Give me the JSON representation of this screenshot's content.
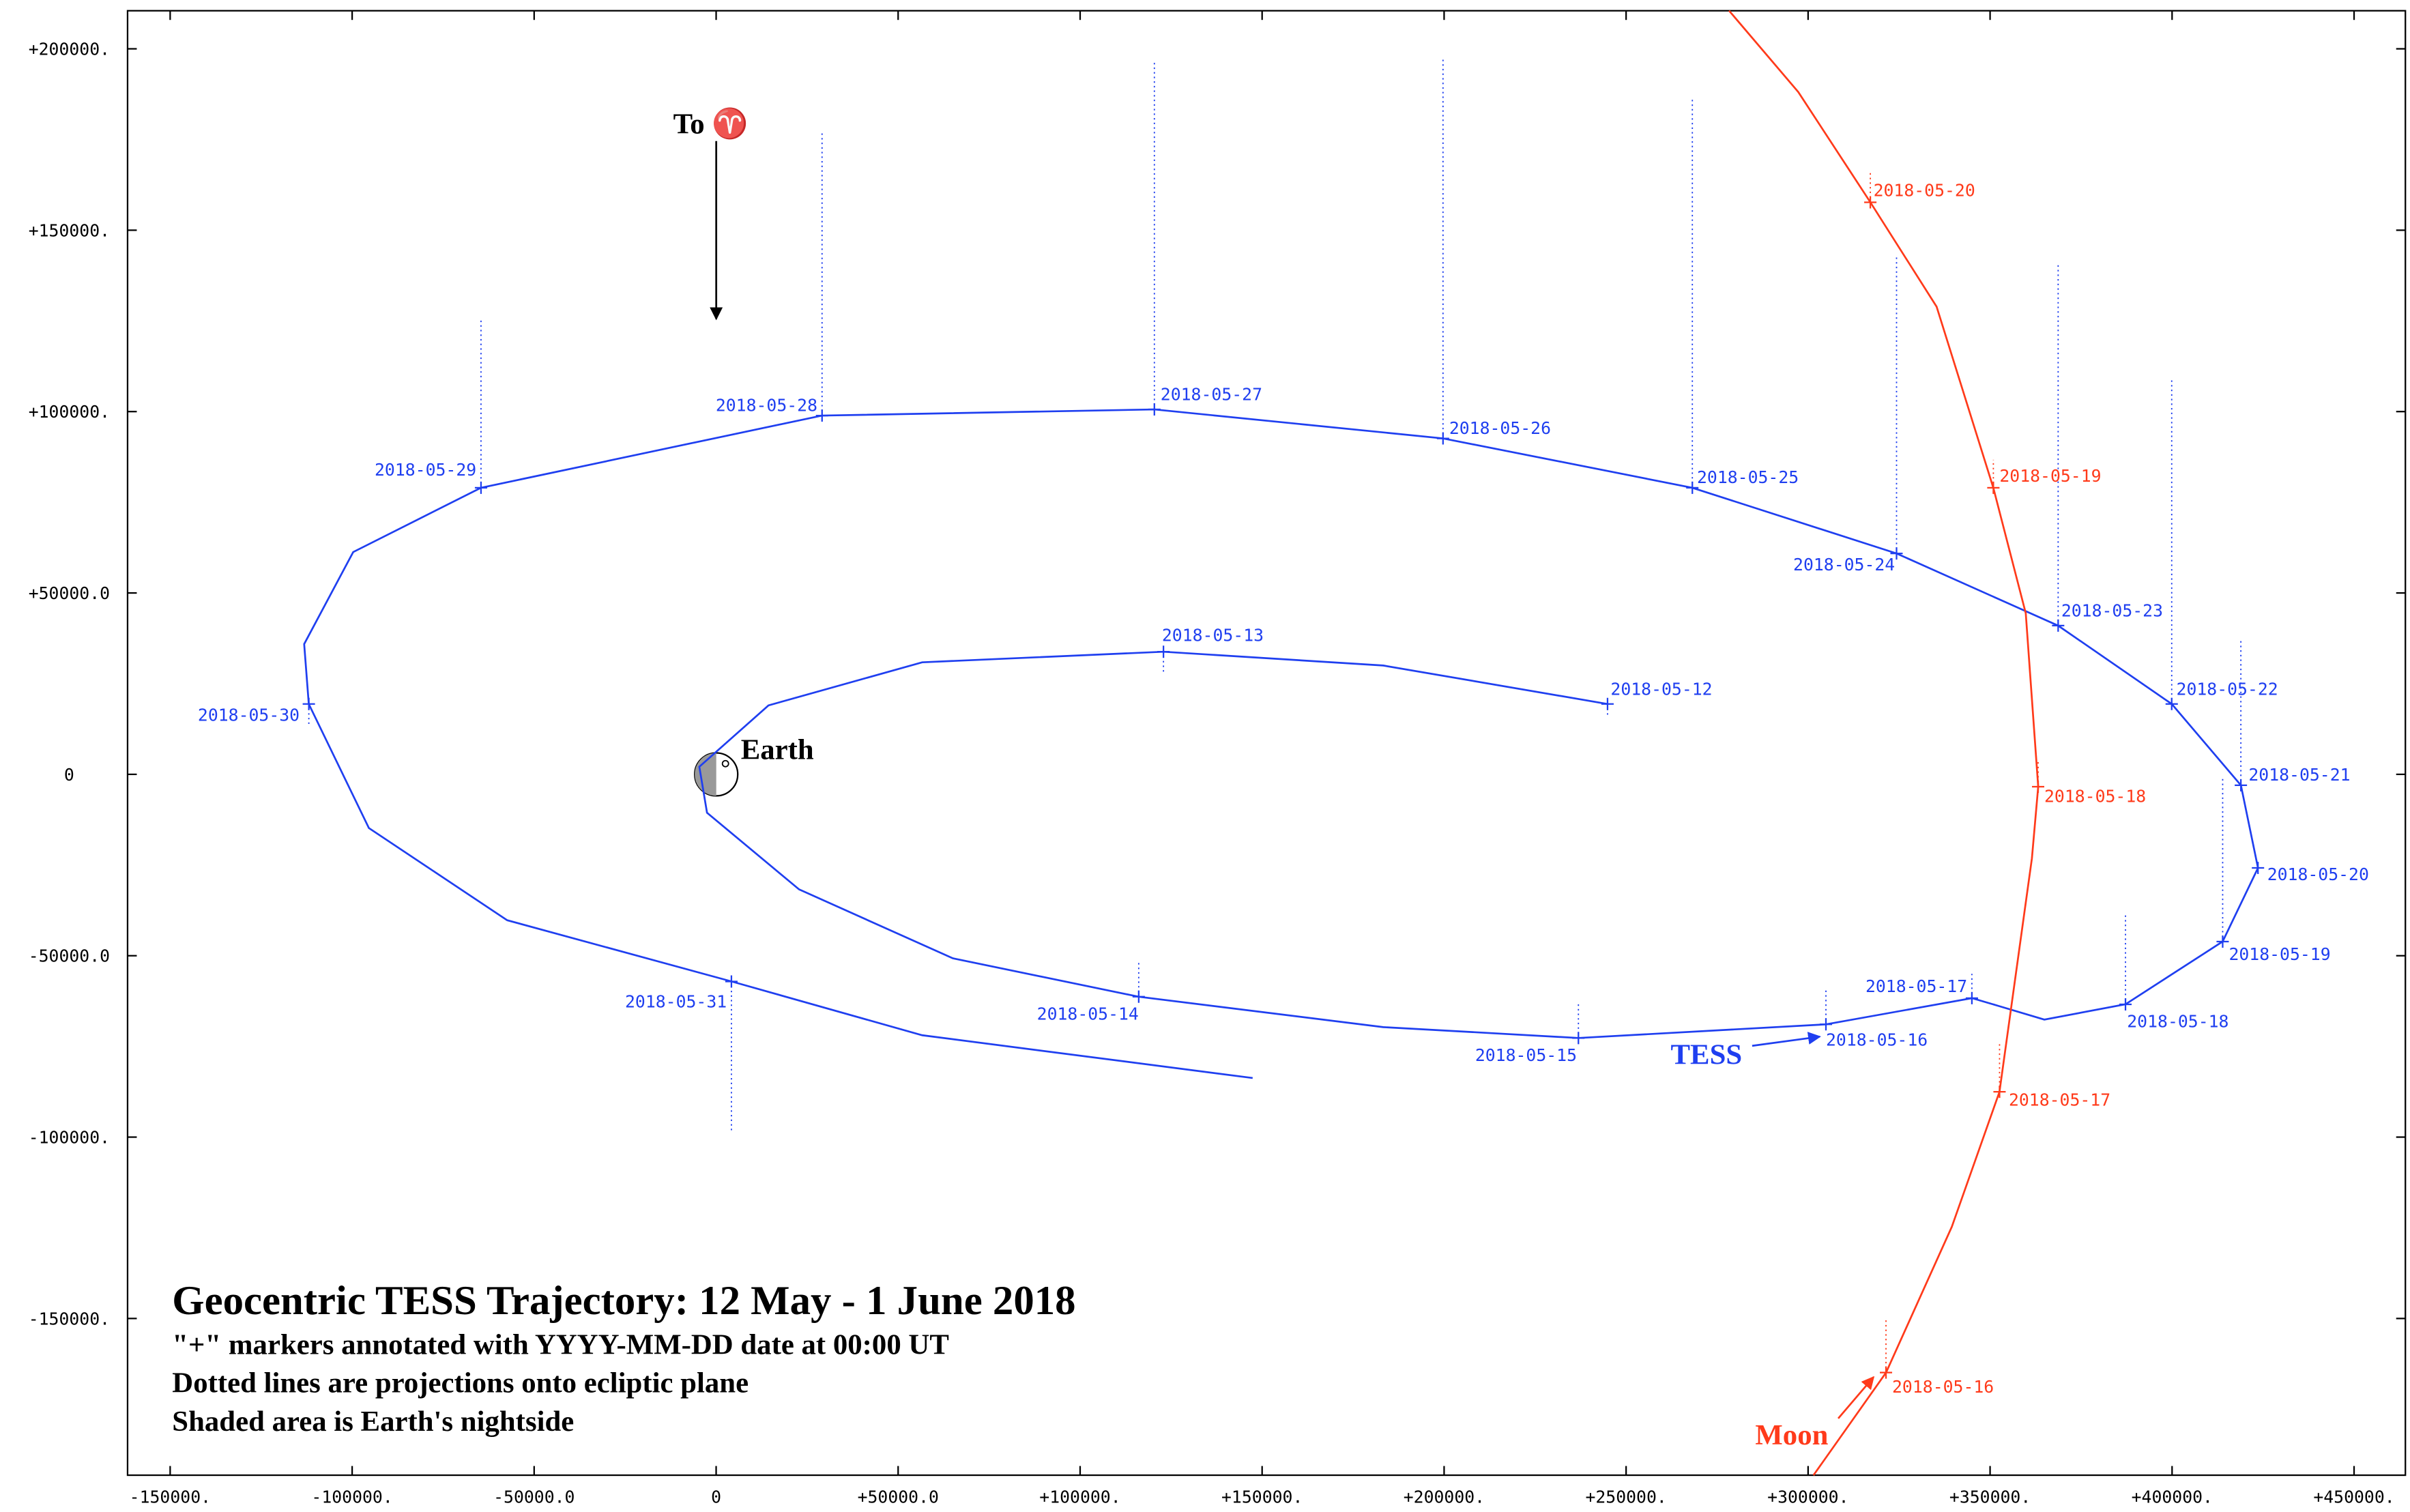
{
  "chart_data": {
    "type": "line",
    "title": "Geocentric TESS Trajectory: 12 May - 1 June 2018",
    "notes": [
      "\"+\" markers annotated with YYYY-MM-DD date at 00:00 UT",
      "Dotted lines are projections onto ecliptic plane",
      "Shaded area is Earth's nightside"
    ],
    "annotations": {
      "aries": "To ♈",
      "earth": "Earth"
    },
    "xlim": [
      -161700,
      464100
    ],
    "ylim": [
      -193200,
      210500
    ],
    "xticks": [
      {
        "value": -150000,
        "label": "-150000."
      },
      {
        "value": -100000,
        "label": "-100000."
      },
      {
        "value": -50000,
        "label": "-50000.0"
      },
      0,
      {
        "value": 50000,
        "label": "+50000.0"
      },
      {
        "value": 100000,
        "label": "+100000."
      },
      {
        "value": 150000,
        "label": "+150000."
      },
      {
        "value": 200000,
        "label": "+200000."
      },
      {
        "value": 250000,
        "label": "+250000."
      },
      {
        "value": 300000,
        "label": "+300000."
      },
      {
        "value": 350000,
        "label": "+350000."
      },
      {
        "value": 400000,
        "label": "+400000."
      },
      {
        "value": 450000,
        "label": "+450000."
      }
    ],
    "yticks": [
      {
        "value": -150000,
        "label": "-150000."
      },
      {
        "value": -100000,
        "label": "-100000."
      },
      {
        "value": -50000,
        "label": "-50000.0"
      },
      0,
      {
        "value": 50000,
        "label": "+50000.0"
      },
      {
        "value": 100000,
        "label": "+100000."
      },
      {
        "value": 150000,
        "label": "+150000."
      },
      {
        "value": 200000,
        "label": "+200000."
      }
    ],
    "series": [
      {
        "name": "TESS",
        "color": "#1f3ff0",
        "x": [
          244900,
          183300,
          122900,
          56600,
          14400,
          -4600,
          -2500,
          22800,
          65000,
          116100,
          183300,
          236900,
          304900,
          345000,
          352200,
          364900,
          387200,
          413900,
          423600,
          418900,
          399900,
          368700,
          324300,
          268200,
          199700,
          120400,
          29100,
          -64600,
          -99700,
          -113200,
          -111900,
          -95400,
          -57400,
          4200,
          56600,
          147400
        ],
        "y": [
          19400,
          30000,
          33800,
          30900,
          19000,
          2100,
          -10600,
          -31700,
          -50700,
          -61300,
          -69700,
          -72700,
          -68900,
          -61700,
          -63800,
          -67600,
          -63400,
          -46100,
          -25800,
          -3000,
          19400,
          41000,
          60900,
          79000,
          92600,
          100600,
          98900,
          79000,
          61300,
          35900,
          19400,
          -14800,
          -40200,
          -57100,
          -71900,
          -83700
        ],
        "markers": {
          "labels": [
            "2018-05-12",
            "2018-05-13",
            "2018-05-14",
            "2018-05-15",
            "2018-05-16",
            "2018-05-17",
            "2018-05-18",
            "2018-05-19",
            "2018-05-20",
            "2018-05-21",
            "2018-05-22",
            "2018-05-23",
            "2018-05-24",
            "2018-05-25",
            "2018-05-26",
            "2018-05-27",
            "2018-05-28",
            "2018-05-29",
            "2018-05-30",
            "2018-05-31"
          ],
          "x": [
            244900,
            122900,
            116100,
            236900,
            304900,
            345000,
            387200,
            413900,
            423600,
            418900,
            399900,
            368700,
            324300,
            268200,
            199700,
            120400,
            29100,
            -64600,
            -111900,
            4200
          ],
          "y": [
            19400,
            33800,
            -61300,
            -72700,
            -68900,
            -61700,
            -63400,
            -46100,
            -25800,
            -3000,
            19400,
            41000,
            60900,
            79000,
            92600,
            100600,
            98900,
            79000,
            19400,
            -57100
          ],
          "projection_y": [
            15600,
            28300,
            -52000,
            -63000,
            -59200,
            -55000,
            -38500,
            -1300,
            null,
            36800,
            109100,
            140800,
            143300,
            186000,
            197800,
            196600,
            176700,
            125500,
            13100,
            -98500
          ]
        }
      },
      {
        "name": "Moon",
        "color": "#ff3a1a",
        "x": [
          278300,
          297300,
          317100,
          335300,
          350900,
          359800,
          363200,
          361500,
          352600,
          339500,
          321400,
          301500
        ],
        "y": [
          210500,
          188100,
          157700,
          128900,
          79000,
          44400,
          -3400,
          -23200,
          -87500,
          -124700,
          -164900,
          -193200
        ],
        "markers": {
          "labels": [
            "2018-05-20",
            "2018-05-19",
            "2018-05-18",
            "2018-05-17",
            "2018-05-16"
          ],
          "x": [
            317100,
            350900,
            363200,
            352600,
            321400
          ],
          "y": [
            157700,
            79000,
            -3400,
            -87500,
            -164900
          ],
          "projection_y": [
            166100,
            86700,
            4200,
            -74000,
            -150100
          ]
        }
      }
    ]
  }
}
